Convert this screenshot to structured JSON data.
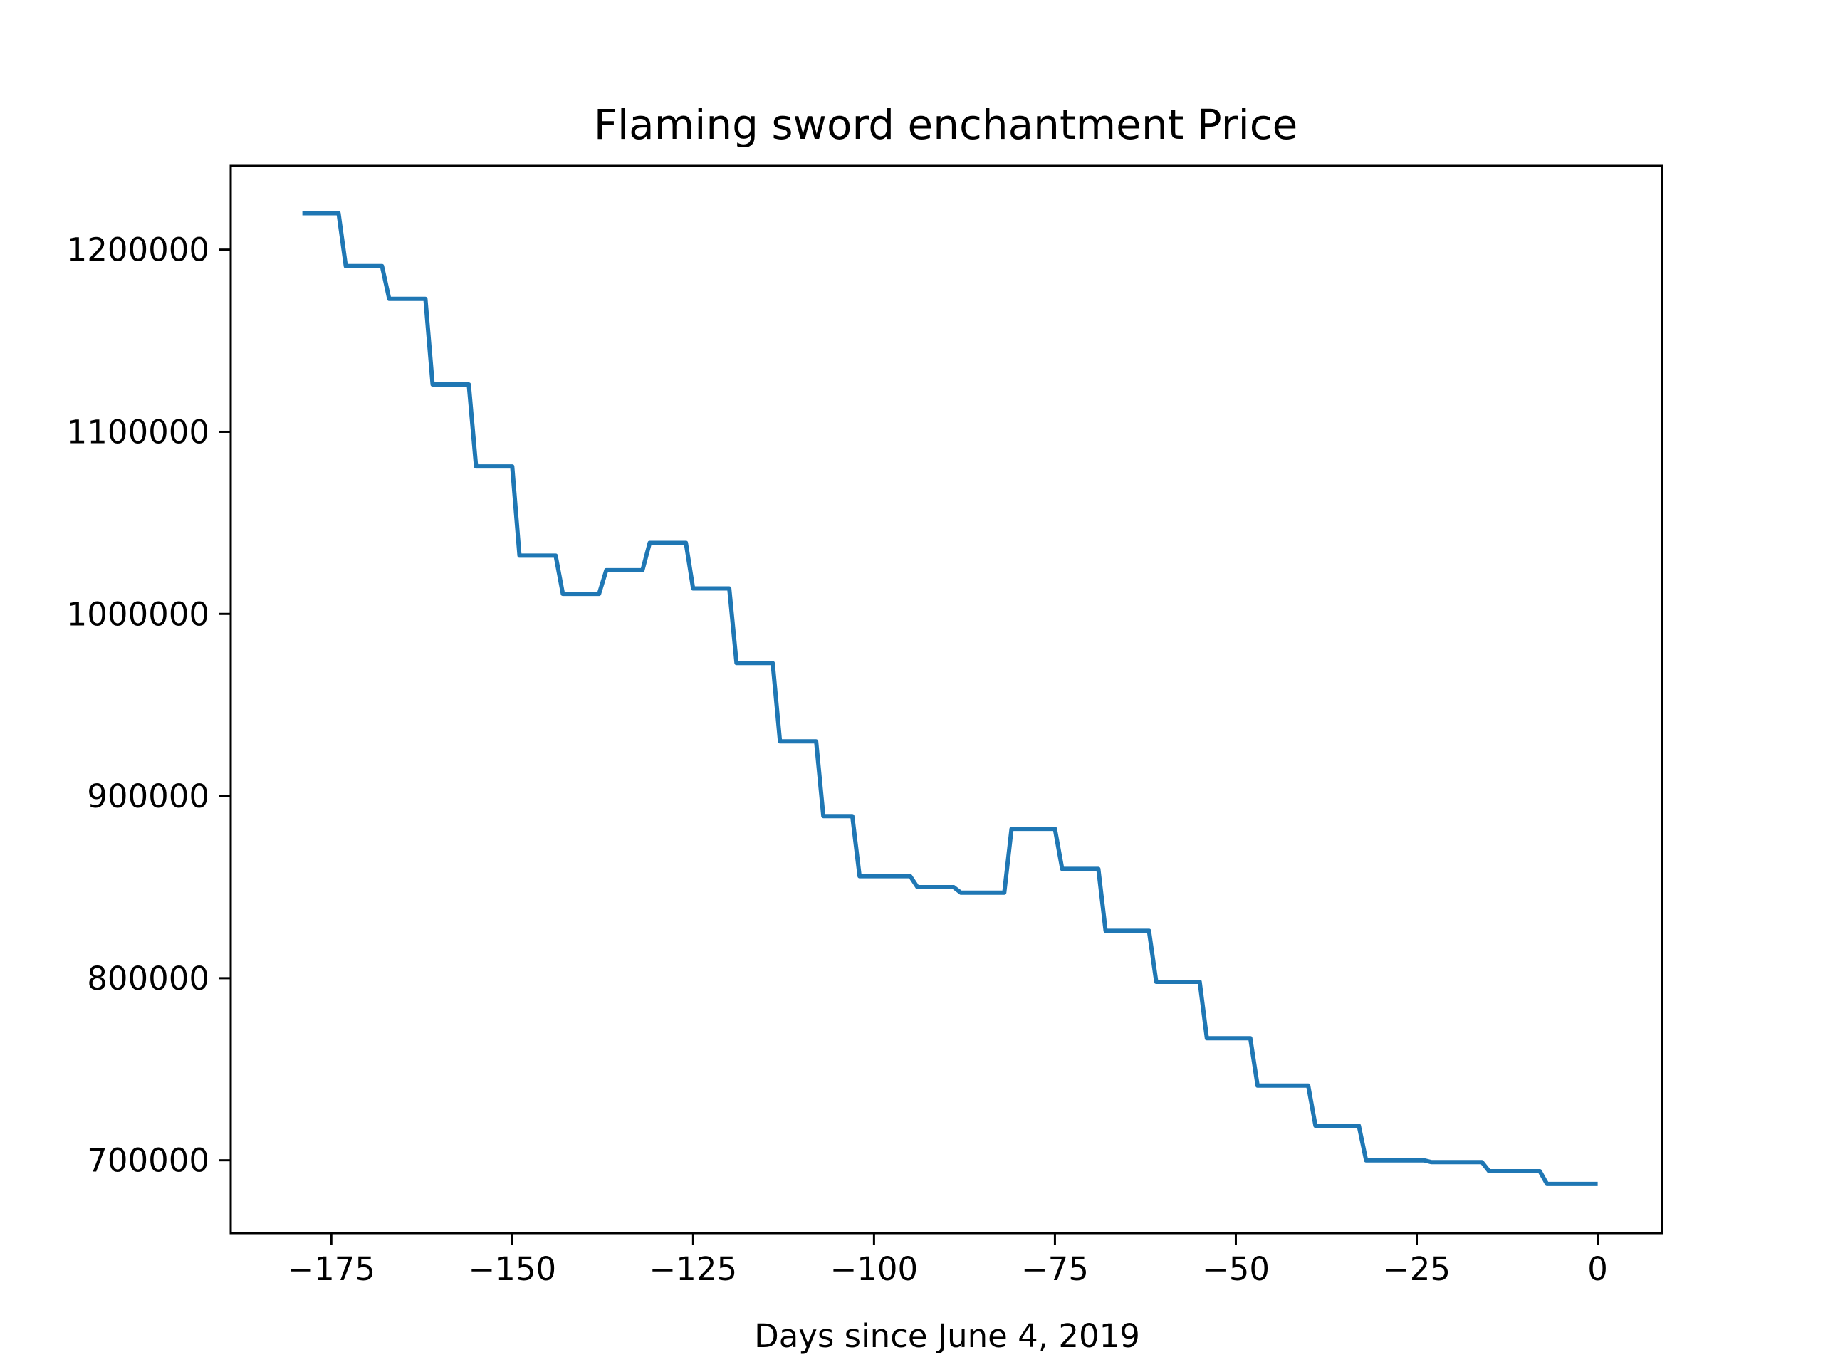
{
  "chart_data": {
    "type": "line",
    "title": "Flaming sword enchantment Price",
    "xlabel": "Days since June 4, 2019",
    "ylabel": "",
    "xlim": [
      -188.9,
      8.9
    ],
    "ylim": [
      660000,
      1246000
    ],
    "xticks": [
      -175,
      -150,
      -125,
      -100,
      -75,
      -50,
      -25,
      0
    ],
    "xtick_labels": [
      "−175",
      "−150",
      "−125",
      "−100",
      "−75",
      "−50",
      "−25",
      "0"
    ],
    "yticks": [
      700000,
      800000,
      900000,
      1000000,
      1100000,
      1200000
    ],
    "ytick_labels": [
      "700000",
      "800000",
      "900000",
      "1000000",
      "1100000",
      "1200000"
    ],
    "grid": false,
    "legend": "none",
    "series": [
      {
        "color": "#1f77b4",
        "x": [
          -179,
          -174,
          -173,
          -168,
          -167,
          -162,
          -161,
          -156,
          -155,
          -150,
          -149,
          -144,
          -143,
          -138,
          -137,
          -132,
          -131,
          -126,
          -125,
          -120,
          -119,
          -114,
          -113,
          -108,
          -107,
          -103,
          -102,
          -95,
          -94,
          -89,
          -88,
          -82,
          -81,
          -75,
          -74,
          -69,
          -68,
          -62,
          -61,
          -55,
          -54,
          -48,
          -47,
          -40,
          -39,
          -33,
          -32,
          -24,
          -23,
          -16,
          -15,
          -8,
          -7,
          0
        ],
        "y": [
          1220000,
          1220000,
          1191000,
          1191000,
          1173000,
          1173000,
          1126000,
          1126000,
          1081000,
          1081000,
          1032000,
          1032000,
          1011000,
          1011000,
          1024000,
          1024000,
          1039000,
          1039000,
          1014000,
          1014000,
          973000,
          973000,
          930000,
          930000,
          889000,
          889000,
          856000,
          856000,
          850000,
          850000,
          847000,
          847000,
          882000,
          882000,
          860000,
          860000,
          826000,
          826000,
          798000,
          798000,
          767000,
          767000,
          741000,
          741000,
          719000,
          719000,
          700000,
          700000,
          699000,
          699000,
          694000,
          694000,
          687000,
          687000
        ]
      }
    ]
  }
}
